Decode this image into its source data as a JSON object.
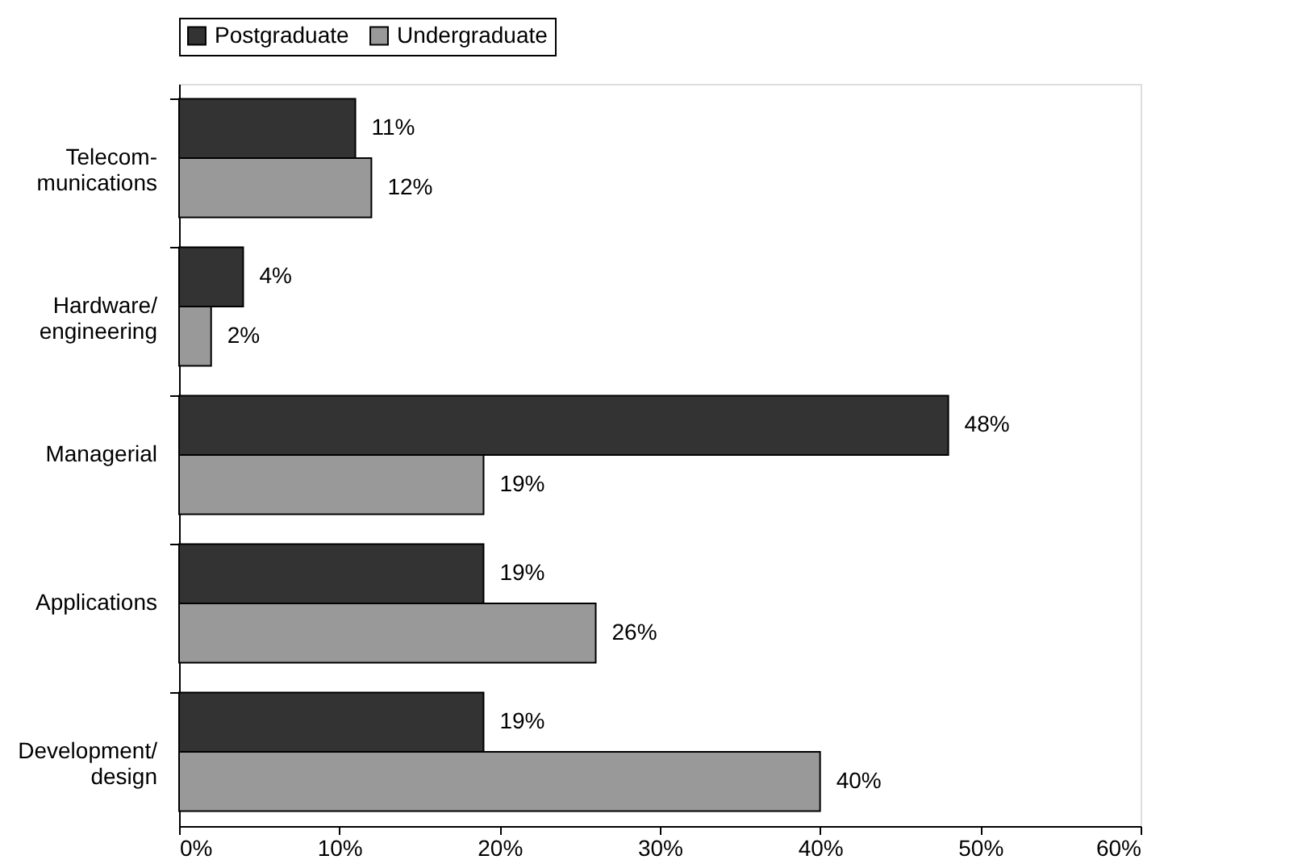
{
  "chart_data": {
    "type": "bar",
    "orientation": "horizontal",
    "categories": [
      "Telecom-\nmunications",
      "Hardware/\nengineering",
      "Managerial",
      "Applications",
      "Development/\ndesign"
    ],
    "series": [
      {
        "name": "Postgraduate",
        "color": "#333333",
        "values": [
          11,
          4,
          48,
          19,
          19
        ],
        "value_labels": [
          "11%",
          "4%",
          "48%",
          "19%",
          "19%"
        ]
      },
      {
        "name": "Undergraduate",
        "color": "#999999",
        "values": [
          12,
          2,
          19,
          26,
          40
        ],
        "value_labels": [
          "12%",
          "2%",
          "19%",
          "26%",
          "40%"
        ]
      }
    ],
    "xlim": [
      0,
      60
    ],
    "xticks": [
      {
        "value": 0,
        "label": "0%"
      },
      {
        "value": 10,
        "label": "10%"
      },
      {
        "value": 20,
        "label": "20%"
      },
      {
        "value": 30,
        "label": "30%"
      },
      {
        "value": 40,
        "label": "40%"
      },
      {
        "value": 50,
        "label": "50%"
      },
      {
        "value": 60,
        "label": "60%"
      }
    ],
    "legend": "top",
    "grid": false
  }
}
